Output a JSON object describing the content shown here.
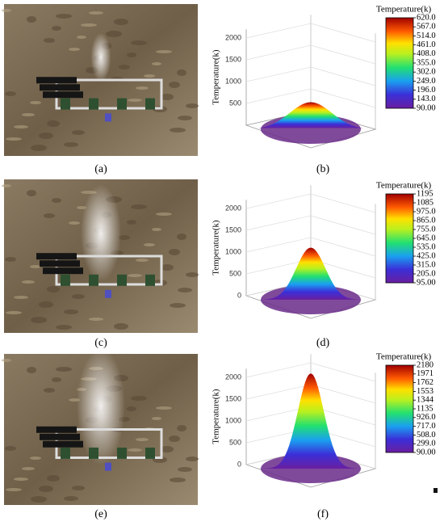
{
  "rows": [
    {
      "photo_label": "(a)",
      "plot_label": "(b)",
      "plot": {
        "z_axis_title": "Temperature(k)",
        "zticks": [
          500,
          1000,
          1500,
          2000
        ],
        "colorbar_title": "Temperature(k)",
        "colorbar_ticks": [
          "620.0",
          "567.0",
          "514.0",
          "461.0",
          "408.0",
          "355.0",
          "302.0",
          "249.0",
          "196.0",
          "143.0",
          "90.00"
        ]
      }
    },
    {
      "photo_label": "(c)",
      "plot_label": "(d)",
      "plot": {
        "z_axis_title": "Temperature(k)",
        "zticks": [
          0,
          500,
          1000,
          1500,
          2000
        ],
        "colorbar_title": "Temperature(k)",
        "colorbar_ticks": [
          "1195",
          "1085",
          "975.0",
          "865.0",
          "755.0",
          "645.0",
          "535.0",
          "425.0",
          "315.0",
          "205.0",
          "95.00"
        ]
      }
    },
    {
      "photo_label": "(e)",
      "plot_label": "(f)",
      "plot": {
        "z_axis_title": "Temperature(k)",
        "zticks": [
          0,
          500,
          1000,
          1500,
          2000
        ],
        "colorbar_title": "Temperature(k)",
        "colorbar_ticks": [
          "2180",
          "1971",
          "1762",
          "1553",
          "1344",
          "1135",
          "926.0",
          "717.0",
          "508.0",
          "299.0",
          "90.00"
        ]
      }
    }
  ]
}
